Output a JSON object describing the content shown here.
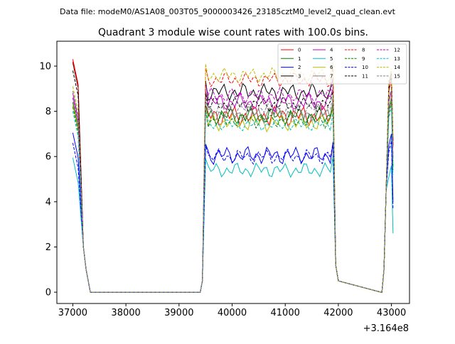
{
  "header": {
    "file_label": "Data file: modeM0/AS1A08_003T05_9000003426_23185cztM0_level2_quad_clean.evt"
  },
  "chart_data": {
    "type": "line",
    "title": "Quadrant 3 module wise count rates with 100.0s bins.",
    "xlabel": "",
    "ylabel": "",
    "x_offset_label": "+3.164e8",
    "xlim": [
      36700,
      43340
    ],
    "ylim": [
      -0.5,
      11.1
    ],
    "xticks": [
      37000,
      38000,
      39000,
      40000,
      41000,
      42000,
      43000
    ],
    "yticks": [
      0,
      2,
      4,
      6,
      8,
      10
    ],
    "grid": false,
    "legend_position": "top-right",
    "legend_columns": 4,
    "x_segments": [
      [
        37000,
        37100,
        37200,
        37250,
        37330,
        37400,
        37500,
        38000,
        38500,
        39000,
        39400
      ],
      [
        39440,
        39500,
        39550,
        39600,
        39650,
        39700,
        39750,
        39800,
        39850,
        39900,
        39950,
        40000,
        40050,
        40100,
        40150,
        40200,
        40250,
        40300,
        40350,
        40400,
        40450,
        40500,
        40550,
        40600,
        40650,
        40700,
        40750,
        40800,
        40850,
        40900,
        40950,
        41000,
        41050,
        41100,
        41150,
        41200,
        41250,
        41300,
        41350,
        41400,
        41450,
        41500,
        41550,
        41600,
        41650,
        41700,
        41750,
        41800,
        41850,
        41900,
        41950,
        42000,
        42800
      ],
      [
        42820,
        42860,
        42900,
        42950,
        43000,
        43030
      ]
    ],
    "series": [
      {
        "name": "0",
        "color": "#ff0000",
        "dash": "solid",
        "level_a": 10.3,
        "level_b": 7.8,
        "level_c": 9.4,
        "amp": 0.35
      },
      {
        "name": "1",
        "color": "#008000",
        "dash": "solid",
        "level_a": 8.4,
        "level_b": 7.8,
        "level_c": 8.6,
        "amp": 0.3
      },
      {
        "name": "2",
        "color": "#0000ff",
        "dash": "solid",
        "level_a": 7.05,
        "level_b": 6.05,
        "level_c": 7.0,
        "amp": 0.3
      },
      {
        "name": "3",
        "color": "#000000",
        "dash": "solid",
        "level_a": 10.15,
        "level_b": 8.85,
        "level_c": 9.7,
        "amp": 0.3
      },
      {
        "name": "4",
        "color": "#bf00bf",
        "dash": "solid",
        "level_a": 8.8,
        "level_b": 8.4,
        "level_c": 8.9,
        "amp": 0.3
      },
      {
        "name": "5",
        "color": "#00bfbf",
        "dash": "solid",
        "level_a": 5.95,
        "level_b": 5.4,
        "level_c": 5.6,
        "amp": 0.25
      },
      {
        "name": "6",
        "color": "#bfbf00",
        "dash": "solid",
        "level_a": 8.3,
        "level_b": 7.5,
        "level_c": 8.5,
        "amp": 0.3
      },
      {
        "name": "7",
        "color": "#808080",
        "dash": "solid",
        "level_a": 8.6,
        "level_b": 7.9,
        "level_c": 8.5,
        "amp": 0.3
      },
      {
        "name": "8",
        "color": "#ff0000",
        "dash": "dashed",
        "level_a": 10.2,
        "level_b": 9.4,
        "level_c": 9.6,
        "amp": 0.25
      },
      {
        "name": "9",
        "color": "#008000",
        "dash": "dashed",
        "level_a": 8.2,
        "level_b": 7.6,
        "level_c": 8.4,
        "amp": 0.25
      },
      {
        "name": "10",
        "color": "#0000ff",
        "dash": "dashed",
        "level_a": 6.6,
        "level_b": 6.0,
        "level_c": 6.7,
        "amp": 0.25
      },
      {
        "name": "11",
        "color": "#000000",
        "dash": "dashed",
        "level_a": 9.8,
        "level_b": 8.3,
        "level_c": 9.5,
        "amp": 0.25
      },
      {
        "name": "12",
        "color": "#bf00bf",
        "dash": "dashed",
        "level_a": 8.6,
        "level_b": 8.7,
        "level_c": 9.0,
        "amp": 0.25
      },
      {
        "name": "13",
        "color": "#00bfbf",
        "dash": "dashed",
        "level_a": 8.0,
        "level_b": 7.4,
        "level_c": 8.2,
        "amp": 0.2
      },
      {
        "name": "14",
        "color": "#bfbf00",
        "dash": "dashed",
        "level_a": 9.1,
        "level_b": 9.6,
        "level_c": 9.9,
        "amp": 0.25
      },
      {
        "name": "15",
        "color": "#808080",
        "dash": "dashed",
        "level_a": 8.9,
        "level_b": 8.1,
        "level_c": 9.0,
        "amp": 0.25
      }
    ]
  }
}
